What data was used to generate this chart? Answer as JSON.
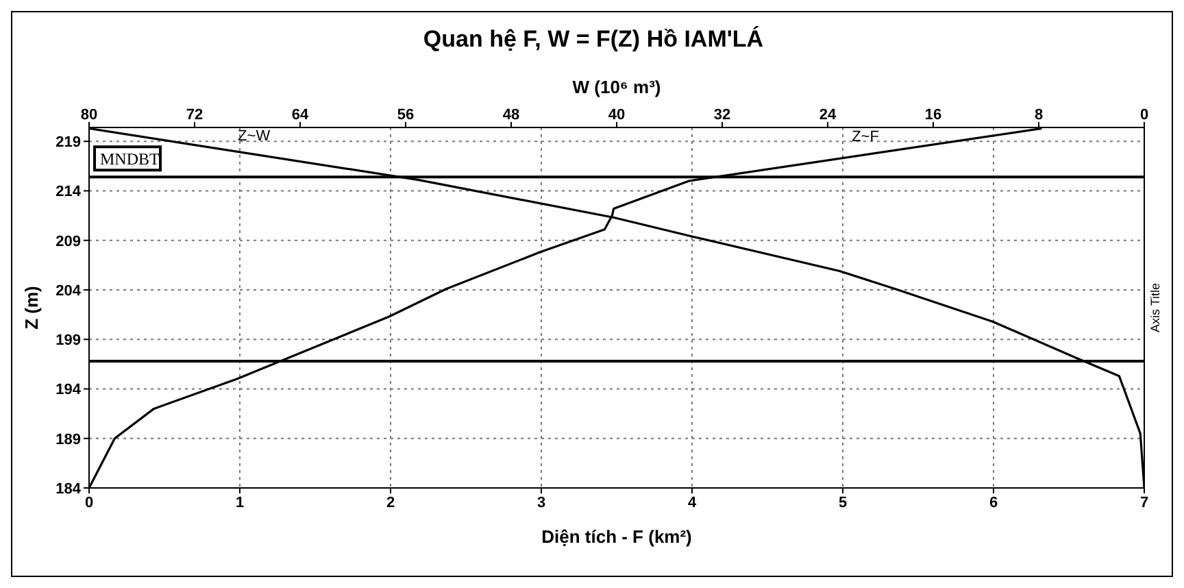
{
  "chart_data": {
    "type": "line",
    "title": "Quan hệ F, W = F(Z) Hồ IAM'LÁ",
    "xlabel": "Diện tích - F (km²)",
    "x2label": "W (10⁶ m³)",
    "ylabel": "Z (m)",
    "y2label": "Axis Title",
    "xlim": [
      0,
      7
    ],
    "xticks": [
      0,
      1,
      2,
      3,
      4,
      5,
      6,
      7
    ],
    "x2lim": [
      80,
      0
    ],
    "x2ticks": [
      80,
      72,
      64,
      56,
      48,
      40,
      32,
      24,
      16,
      8,
      0
    ],
    "ylim": [
      184,
      220.4
    ],
    "yticks": [
      184,
      189,
      194,
      199,
      204,
      209,
      214,
      219
    ],
    "grid": true,
    "legend": false,
    "marker": "none",
    "line_style": "solid",
    "ref_lines": [
      {
        "axis": "y",
        "value": 215.4,
        "label": "MNDBT",
        "color": "#000000"
      },
      {
        "axis": "y",
        "value": 196.8,
        "color": "#000000"
      }
    ],
    "series": [
      {
        "name": "Z~F",
        "color": "#000000",
        "x": [
          0,
          0.17,
          0.43,
          0.98,
          1.99,
          2.37,
          2.99,
          3.42,
          3.47,
          3.48,
          3.98,
          6.32
        ],
        "values": [
          184,
          189,
          192,
          195,
          201.3,
          204.1,
          207.8,
          210.1,
          211.5,
          212.2,
          215,
          220.3
        ]
      },
      {
        "name": "Z~W",
        "axis": "x2",
        "color": "#000000",
        "x": [
          80,
          55,
          40.2,
          34.3,
          23.1,
          18.9,
          11.5,
          5.1,
          1.9,
          0.3,
          0
        ],
        "values": [
          220.3,
          215.1,
          211.3,
          209.4,
          205.9,
          204.1,
          200.8,
          197.1,
          195.3,
          189.5,
          184
        ]
      }
    ]
  }
}
